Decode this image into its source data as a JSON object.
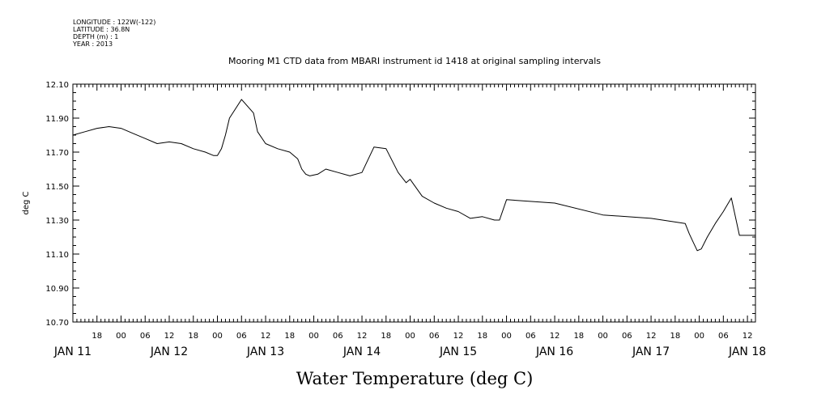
{
  "header": {
    "meta_lines": [
      "LONGITUDE : 122W(-122)",
      "LATITUDE : 36.8N",
      "DEPTH (m) : 1",
      "YEAR : 2013"
    ],
    "title": "Mooring M1 CTD data from MBARI instrument id 1418 at original sampling intervals"
  },
  "chart_data": {
    "type": "line",
    "title": "Mooring M1 CTD data from MBARI instrument id 1418 at original sampling intervals",
    "xlabel": "Water Temperature (deg C)",
    "ylabel": "deg C",
    "xlim": [
      "JAN 11 12:00",
      "JAN 18 14:00"
    ],
    "ylim": [
      10.7,
      12.1
    ],
    "ytick_labels": [
      "12.10",
      "11.90",
      "11.70",
      "11.50",
      "11.30",
      "11.10",
      "10.90",
      "10.70"
    ],
    "xtick_hour_labels": [
      "18",
      "00",
      "06",
      "12",
      "18",
      "00",
      "06",
      "12",
      "18",
      "00",
      "06",
      "12",
      "18",
      "00",
      "06",
      "12",
      "18",
      "00",
      "06",
      "12",
      "18",
      "00",
      "06",
      "12",
      "18",
      "00",
      "06",
      "12",
      "18",
      "00",
      "06",
      "12"
    ],
    "xtick_day_labels": [
      "JAN 11",
      "JAN 12",
      "JAN 13",
      "JAN 14",
      "JAN 15",
      "JAN 16",
      "JAN 17",
      "JAN 18"
    ],
    "grid": false,
    "series": [
      {
        "color": "#000000",
        "x": [
          "JAN 11 12:00",
          "JAN 11 15:00",
          "JAN 11 18:00",
          "JAN 11 21:00",
          "JAN 12 00:00",
          "JAN 12 03:00",
          "JAN 12 06:00",
          "JAN 12 09:00",
          "JAN 12 12:00",
          "JAN 12 15:00",
          "JAN 12 18:00",
          "JAN 12 21:00",
          "JAN 12 23:00",
          "JAN 13 00:00",
          "JAN 13 01:00",
          "JAN 13 02:00",
          "JAN 13 03:00",
          "JAN 13 06:00",
          "JAN 13 09:00",
          "JAN 13 10:00",
          "JAN 13 12:00",
          "JAN 13 15:00",
          "JAN 13 18:00",
          "JAN 13 20:00",
          "JAN 13 21:00",
          "JAN 13 22:00",
          "JAN 13 23:00",
          "JAN 14 01:00",
          "JAN 14 03:00",
          "JAN 14 06:00",
          "JAN 14 09:00",
          "JAN 14 12:00",
          "JAN 14 15:00",
          "JAN 14 18:00",
          "JAN 14 21:00",
          "JAN 14 23:00",
          "JAN 15 00:00",
          "JAN 15 03:00",
          "JAN 15 06:00",
          "JAN 15 09:00",
          "JAN 15 12:00",
          "JAN 15 15:00",
          "JAN 15 18:00",
          "JAN 15 21:00",
          "JAN 15 22:00",
          "JAN 15 22:15",
          "JAN 16 00:00",
          "JAN 16 12:00",
          "JAN 17 00:00",
          "JAN 17 12:00",
          "JAN 17 20:30",
          "JAN 17 21:30",
          "JAN 17 22:30",
          "JAN 17 23:30",
          "JAN 18 00:30",
          "JAN 18 02:00",
          "JAN 18 04:00",
          "JAN 18 06:00",
          "JAN 18 08:00",
          "JAN 18 10:00",
          "JAN 18 12:00",
          "JAN 18 14:00"
        ],
        "y": [
          11.8,
          11.82,
          11.84,
          11.85,
          11.84,
          11.81,
          11.78,
          11.75,
          11.76,
          11.75,
          11.72,
          11.7,
          11.68,
          11.68,
          11.72,
          11.8,
          11.9,
          12.01,
          11.93,
          11.82,
          11.75,
          11.72,
          11.7,
          11.66,
          11.6,
          11.57,
          11.56,
          11.57,
          11.6,
          11.58,
          11.56,
          11.58,
          11.73,
          11.72,
          11.58,
          11.52,
          11.54,
          11.44,
          11.4,
          11.37,
          11.35,
          11.31,
          11.32,
          11.3,
          11.3,
          11.3,
          11.42,
          11.4,
          11.33,
          11.31,
          11.28,
          11.22,
          11.17,
          11.12,
          11.13,
          11.2,
          11.28,
          11.35,
          11.43,
          11.21,
          11.21,
          11.21
        ]
      }
    ]
  }
}
